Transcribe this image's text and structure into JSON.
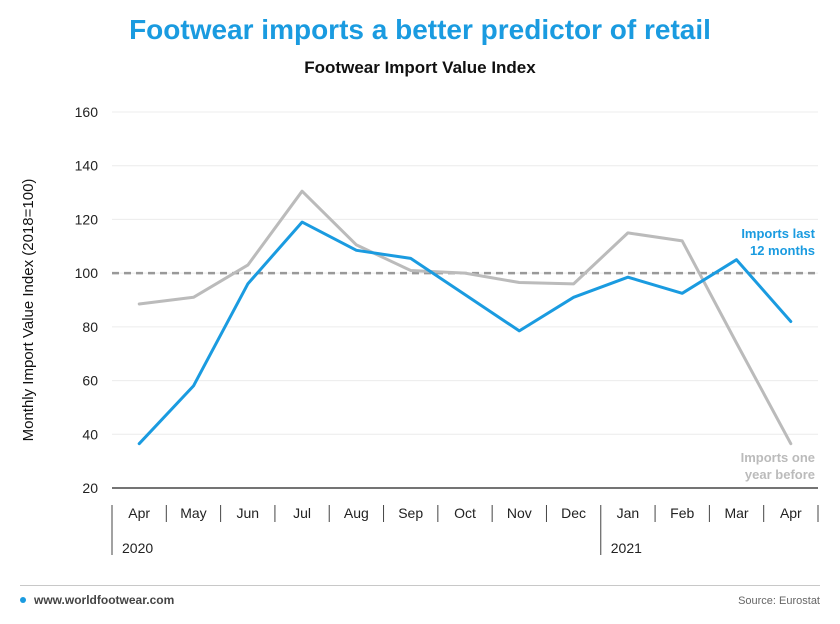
{
  "page": {
    "title": "Footwear imports a better predictor of retail",
    "website": "www.worldfootwear.com",
    "source": "Source: Eurostat"
  },
  "chart_data": {
    "type": "line",
    "title": "Footwear Import Value Index",
    "ylabel": "Monthly Import Value Index  (2018=100)",
    "xlabel": "",
    "ylim": [
      20,
      160
    ],
    "yticks": [
      20,
      40,
      60,
      80,
      100,
      120,
      140,
      160
    ],
    "categories": [
      "Apr",
      "May",
      "Jun",
      "Jul",
      "Aug",
      "Sep",
      "Oct",
      "Nov",
      "Dec",
      "Jan",
      "Feb",
      "Mar",
      "Apr"
    ],
    "year_labels": [
      {
        "label": "2020",
        "start_index": 0
      },
      {
        "label": "2021",
        "start_index": 9
      }
    ],
    "grid": true,
    "reference_line": {
      "value": 100,
      "style": "dashed",
      "color": "#999999"
    },
    "series": [
      {
        "name": "Imports one year before",
        "label_lines": [
          "Imports one",
          "year before"
        ],
        "color": "#bbbbbb",
        "values": [
          88.5,
          91,
          103,
          130.5,
          110.5,
          101,
          100,
          96.5,
          96,
          115,
          112,
          74,
          36.5
        ]
      },
      {
        "name": "Imports last 12 months",
        "label_lines": [
          "Imports last",
          "12 months"
        ],
        "color": "#1a9be0",
        "values": [
          36.5,
          58,
          96,
          119,
          108.5,
          105.5,
          92,
          78.5,
          91,
          98.5,
          92.5,
          105,
          82
        ]
      }
    ]
  }
}
